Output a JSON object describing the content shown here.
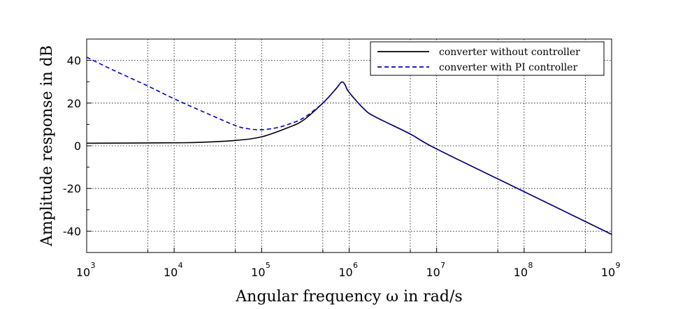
{
  "chart_data": {
    "type": "line",
    "xlabel": "Angular frequency ω in rad/s",
    "ylabel": "Amplitude response in dB",
    "xscale": "log",
    "xlim": [
      1000,
      1000000000
    ],
    "ylim": [
      -50,
      50
    ],
    "x_ticks": [
      {
        "base": "10",
        "exp": "3"
      },
      {
        "base": "10",
        "exp": "4"
      },
      {
        "base": "10",
        "exp": "5"
      },
      {
        "base": "10",
        "exp": "6"
      },
      {
        "base": "10",
        "exp": "7"
      },
      {
        "base": "10",
        "exp": "8"
      },
      {
        "base": "10",
        "exp": "9"
      }
    ],
    "y_ticks": [
      "-40",
      "-20",
      "0",
      "20",
      "40"
    ],
    "grid": true,
    "legend_position": "top-right",
    "series": [
      {
        "name": "converter without controller",
        "color": "#000000",
        "style": "solid",
        "x": [
          1000,
          10000,
          20000,
          50000,
          100000,
          200000,
          300000,
          500000,
          700000,
          800000,
          850000,
          900000,
          1000000,
          1500000,
          2000000,
          5000000,
          10000000,
          100000000,
          1000000000
        ],
        "y": [
          1.2,
          1.4,
          1.6,
          2.5,
          4.2,
          8.5,
          12,
          20,
          26.5,
          29.5,
          29.8,
          28.5,
          25,
          17,
          13.5,
          5.5,
          -1.5,
          -21.5,
          -41.5
        ]
      },
      {
        "name": "converter with PI controller",
        "color": "#0000cc",
        "style": "dashed",
        "x": [
          1000,
          2000,
          5000,
          10000,
          20000,
          50000,
          70000,
          100000,
          150000,
          200000,
          300000,
          500000,
          700000,
          800000,
          850000,
          900000,
          1000000,
          1500000,
          2000000,
          5000000,
          10000000,
          100000000,
          1000000000
        ],
        "y": [
          41.5,
          35.5,
          28,
          22,
          16.5,
          9.5,
          8,
          7.5,
          8.5,
          10,
          13,
          20,
          26.5,
          29.5,
          29.8,
          28.5,
          25,
          17,
          13.5,
          5.5,
          -1.5,
          -21.5,
          -41.5
        ]
      }
    ]
  }
}
